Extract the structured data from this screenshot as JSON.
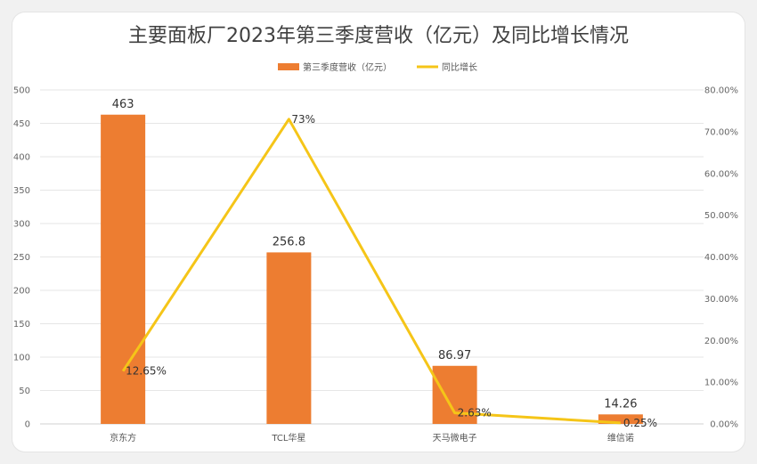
{
  "chart_data": {
    "type": "bar",
    "title": "主要面板厂2023年第三季度营收（亿元）及同比增长情况",
    "categories": [
      "京东方",
      "TCL华星",
      "天马微电子",
      "维信诺"
    ],
    "series": [
      {
        "name": "第三季度营收（亿元）",
        "type": "bar",
        "axis": "left",
        "color": "#ed7d31",
        "values": [
          463,
          256.8,
          86.97,
          14.26
        ],
        "labels": [
          "463",
          "256.8",
          "86.97",
          "14.26"
        ]
      },
      {
        "name": "同比增长",
        "type": "line",
        "axis": "right",
        "color": "#f5c518",
        "values": [
          12.65,
          73,
          2.63,
          0.25
        ],
        "labels": [
          "12.65%",
          "73%",
          "2.63%",
          "0.25%"
        ]
      }
    ],
    "left_axis": {
      "min": 0,
      "max": 500,
      "ticks": [
        "0",
        "50",
        "100",
        "150",
        "200",
        "250",
        "300",
        "350",
        "400",
        "450",
        "500"
      ]
    },
    "right_axis": {
      "min": 0,
      "max": 80,
      "ticks": [
        "0.00%",
        "10.00%",
        "20.00%",
        "30.00%",
        "40.00%",
        "50.00%",
        "60.00%",
        "70.00%",
        "80.00%"
      ]
    },
    "grid": true,
    "legend_position": "top"
  }
}
